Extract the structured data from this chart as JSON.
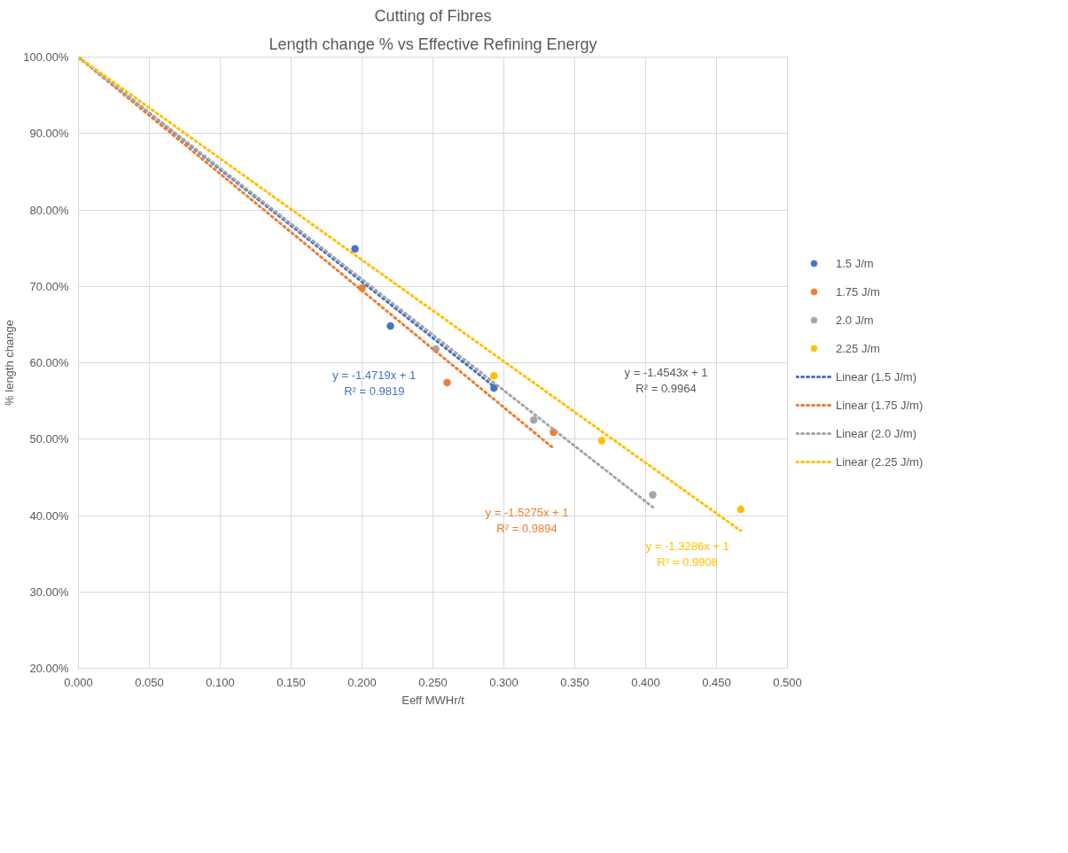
{
  "chart_data": {
    "type": "scatter",
    "title": "Cutting of Fibres",
    "subtitle": "Length change % vs Effective Refining Energy",
    "xlabel": "Eeff MWHr/t",
    "ylabel": "% length change",
    "xlim": [
      0,
      0.5
    ],
    "ylim": [
      20,
      100
    ],
    "xticks": [
      {
        "value": 0,
        "label": "0.000"
      },
      {
        "value": 0.05,
        "label": "0.050"
      },
      {
        "value": 0.1,
        "label": "0.100"
      },
      {
        "value": 0.15,
        "label": "0.150"
      },
      {
        "value": 0.2,
        "label": "0.200"
      },
      {
        "value": 0.25,
        "label": "0.250"
      },
      {
        "value": 0.3,
        "label": "0.300"
      },
      {
        "value": 0.35,
        "label": "0.350"
      },
      {
        "value": 0.4,
        "label": "0.400"
      },
      {
        "value": 0.45,
        "label": "0.450"
      },
      {
        "value": 0.5,
        "label": "0.500"
      }
    ],
    "yticks": [
      {
        "value": 20,
        "label": "20.00%"
      },
      {
        "value": 30,
        "label": "30.00%"
      },
      {
        "value": 40,
        "label": "40.00%"
      },
      {
        "value": 50,
        "label": "50.00%"
      },
      {
        "value": 60,
        "label": "60.00%"
      },
      {
        "value": 70,
        "label": "70.00%"
      },
      {
        "value": 80,
        "label": "80.00%"
      },
      {
        "value": 90,
        "label": "90.00%"
      },
      {
        "value": 100,
        "label": "100.00%"
      }
    ],
    "grid": true,
    "legend": "right",
    "marker": "circle",
    "series": [
      {
        "name": "1.5 J/m",
        "color": "#4472c4",
        "x": [
          0.195,
          0.22,
          0.293
        ],
        "values": [
          74.9,
          64.8,
          56.7
        ]
      },
      {
        "name": "1.75 J/m",
        "color": "#ed7d31",
        "x": [
          0.2,
          0.26,
          0.335
        ],
        "values": [
          69.8,
          57.4,
          50.9
        ]
      },
      {
        "name": "2.0 J/m",
        "color": "#a5a5a5",
        "x": [
          0.252,
          0.321,
          0.405
        ],
        "values": [
          61.8,
          52.5,
          42.7
        ]
      },
      {
        "name": "2.25 J/m",
        "color": "#ffc000",
        "x": [
          0,
          0.293,
          0.369,
          0.467
        ],
        "values": [
          100,
          58.3,
          49.8,
          40.8
        ]
      },
      {
        "name": "Linear (1.5 J/m)",
        "type": "line",
        "marker": "none",
        "line_style": "dotted",
        "color": "#4472c4",
        "x": [
          0,
          0.293
        ],
        "values": [
          100,
          56.9
        ]
      },
      {
        "name": "Linear (1.75 J/m)",
        "type": "line",
        "marker": "none",
        "line_style": "dotted",
        "color": "#ed7d31",
        "x": [
          0,
          0.335
        ],
        "values": [
          100,
          48.8
        ]
      },
      {
        "name": "Linear (2.0 J/m)",
        "type": "line",
        "marker": "none",
        "line_style": "dotted",
        "color": "#a5a5a5",
        "x": [
          0,
          0.405
        ],
        "values": [
          100,
          41.1
        ]
      },
      {
        "name": "Linear (2.25 J/m)",
        "type": "line",
        "marker": "none",
        "line_style": "dotted",
        "color": "#ffc000",
        "x": [
          0,
          0.467
        ],
        "values": [
          100,
          38.0
        ]
      }
    ],
    "annotations": [
      "y = -1.4719x + 1\nR² = 0.9819",
      "y = -1.5275x + 1\nR² = 0.9894",
      "y = -1.4543x + 1\nR² = 0.9964",
      "y = -1.3286x + 1\nR² = 0.9908"
    ]
  }
}
